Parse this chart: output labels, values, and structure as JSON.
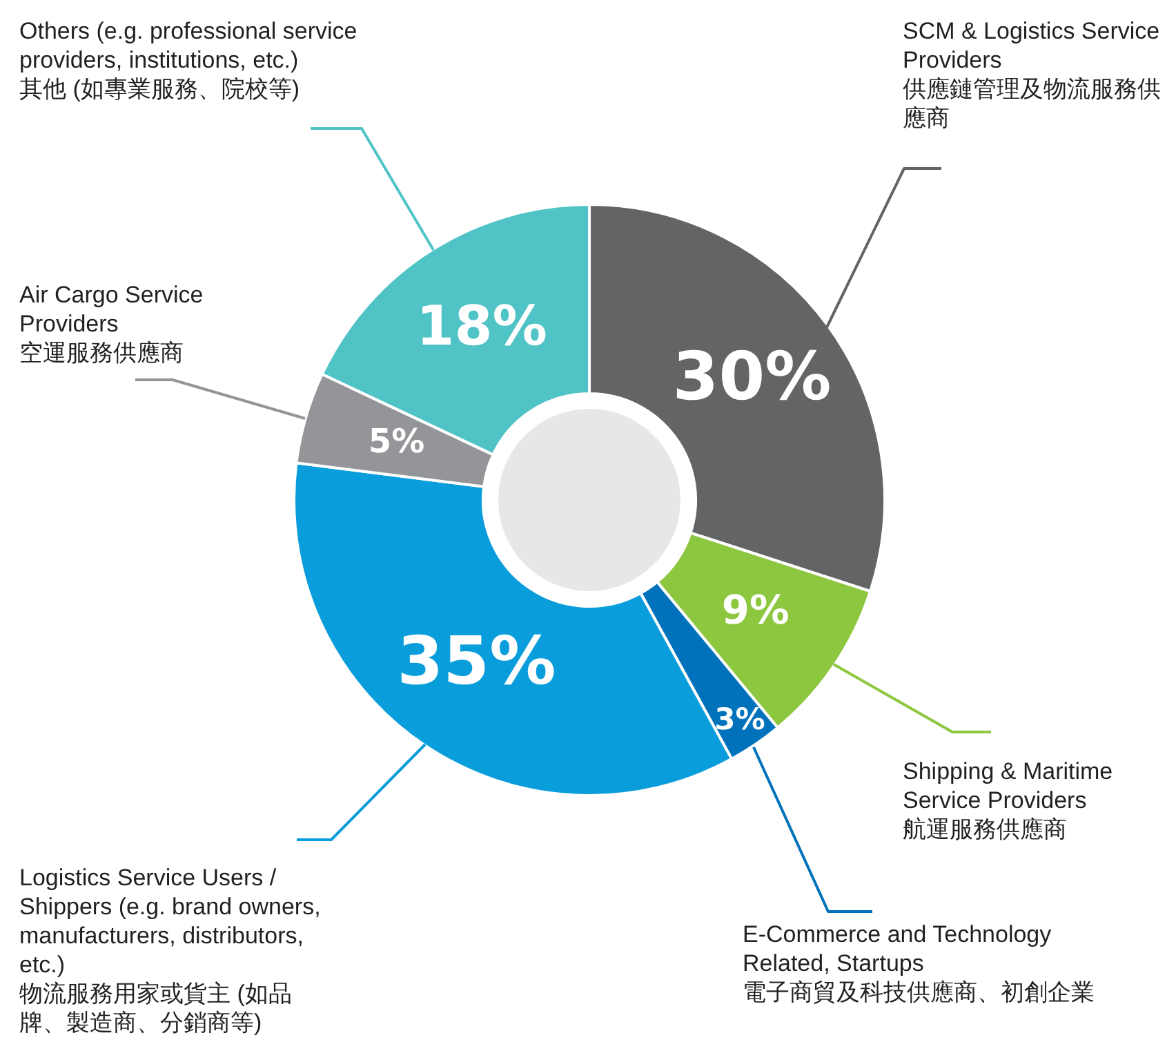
{
  "chart_data": {
    "type": "donut",
    "categories": [
      "SCM & Logistics Service Providers\n供應鏈管理及物流服務供應商",
      "Shipping & Maritime Service Providers\n航運服務供應商",
      "E-Commerce and Technology Related, Startups\n電子商貿及科技供應商、初創企業",
      "Logistics Service Users / Shippers (e.g. brand owners, manufacturers, distributors, etc.)\n物流服務用家或貨主 (如品牌、製造商、分銷商等)",
      "Air Cargo Service Providers\n空運服務供應商",
      "Others (e.g. professional service providers, institutions, etc.)\n其他 (如專業服務、院校等)"
    ],
    "values": [
      30,
      9,
      3,
      35,
      5,
      18
    ],
    "value_labels": [
      "30%",
      "9%",
      "3%",
      "35%",
      "5%",
      "18%"
    ],
    "colors": [
      "#636466",
      "#8dc63f",
      "#0072bc",
      "#0a9ddb",
      "#939598",
      "#4fc3c6"
    ],
    "legend": false
  }
}
